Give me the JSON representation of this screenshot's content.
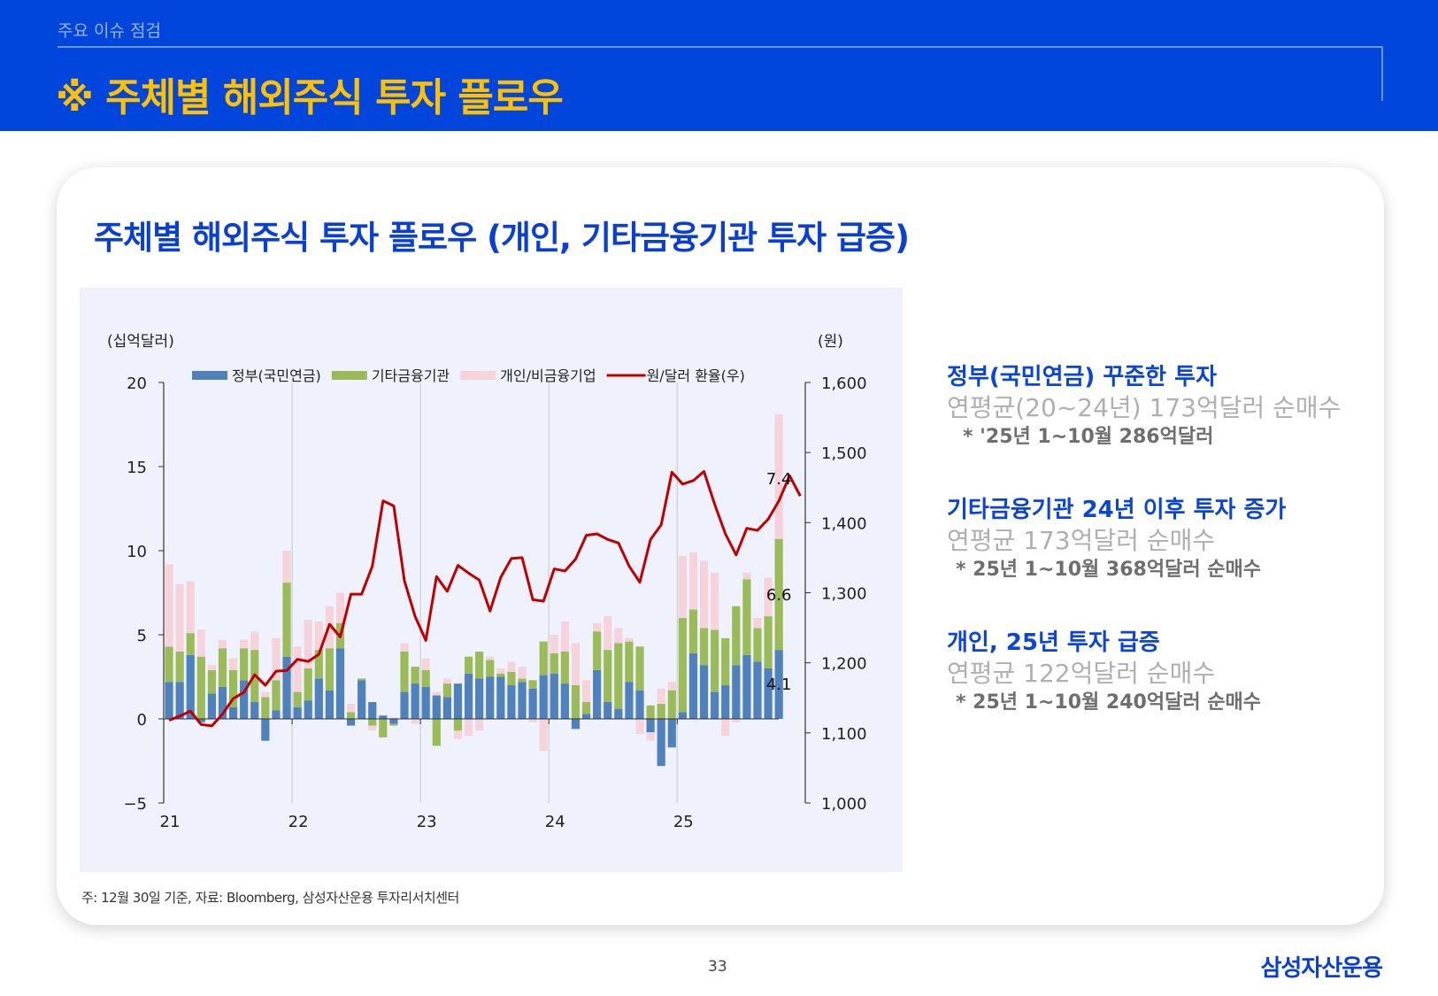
{
  "header": {
    "section": "주요 이슈 점검",
    "title": "※ 주체별 해외주식 투자 플로우"
  },
  "card": {
    "title": "주체별 해외주식 투자 플로우 (개인, 기타금융기관 투자 급증)",
    "footnote": "주: 12월 30일 기준, 자료: Bloomberg, 삼성자산운용 투자리서치센터"
  },
  "chart_data": {
    "type": "bar",
    "stacked": true,
    "left_unit": "(십억달러)",
    "right_unit": "(원)",
    "ylim": [
      -5,
      20
    ],
    "y_ticks": [
      "20",
      "15",
      "10",
      "5",
      "0",
      "−5"
    ],
    "y_tick_values": [
      20,
      15,
      10,
      5,
      0,
      -5
    ],
    "y2lim": [
      1000,
      1600
    ],
    "y2_ticks": [
      "1,600",
      "1,500",
      "1,400",
      "1,300",
      "1,200",
      "1,100",
      "1,000"
    ],
    "y2_tick_values": [
      1600,
      1500,
      1400,
      1300,
      1200,
      1100,
      1000
    ],
    "x_ticks": [
      "21",
      "22",
      "23",
      "24",
      "25"
    ],
    "grid": "vertical lines at year boundaries",
    "legend_position": "top",
    "frequency": "monthly",
    "x_start": "2021-01",
    "series": [
      {
        "name": "정부(국민연금)",
        "color": "#4F81BD",
        "kind": "bar",
        "values": [
          2.2,
          2.2,
          3.8,
          -0.2,
          1.5,
          1.9,
          0.7,
          2.3,
          1.0,
          -1.3,
          0.5,
          3.7,
          0.7,
          1.1,
          2.4,
          1.7,
          4.2,
          -0.4,
          2.3,
          1.0,
          0.2,
          -0.3,
          1.6,
          2.1,
          1.9,
          1.4,
          1.3,
          2.1,
          2.7,
          2.4,
          2.5,
          2.5,
          2.0,
          2.2,
          1.8,
          2.6,
          2.7,
          2.1,
          -0.6,
          0.3,
          2.9,
          1.0,
          0.6,
          2.2,
          1.7,
          -0.8,
          -2.8,
          -1.7,
          0.4,
          3.9,
          3.2,
          1.6,
          2.0,
          3.2,
          3.8,
          3.4,
          3.0,
          4.1
        ]
      },
      {
        "name": "기타금융기관",
        "color": "#9BBB59",
        "kind": "bar",
        "values": [
          2.1,
          1.8,
          1.3,
          3.7,
          1.4,
          2.3,
          2.2,
          1.9,
          3.1,
          1.3,
          1.8,
          4.4,
          0.9,
          1.9,
          1.7,
          2.5,
          1.5,
          0.4,
          0.1,
          -0.4,
          -1.1,
          -0.1,
          2.4,
          1.0,
          1.0,
          -1.6,
          0.8,
          -0.7,
          1.0,
          1.6,
          1.0,
          0.2,
          0.8,
          0.2,
          0.5,
          2.0,
          1.2,
          1.9,
          2.0,
          0.7,
          2.3,
          3.1,
          3.9,
          2.4,
          2.6,
          0.8,
          0.9,
          1.7,
          5.6,
          2.6,
          2.2,
          3.7,
          2.8,
          3.5,
          4.5,
          2.0,
          3.1,
          6.6
        ]
      },
      {
        "name": "개인/비금융기업",
        "color": "#F6D3DA",
        "kind": "bar",
        "values": [
          4.9,
          4.0,
          3.1,
          1.6,
          0.3,
          0.5,
          0.7,
          0.5,
          1.1,
          0.3,
          2.5,
          1.9,
          2.7,
          2.9,
          1.7,
          2.5,
          1.8,
          0.5,
          0.0,
          -0.3,
          0.0,
          0.1,
          0.5,
          -0.3,
          0.7,
          0.2,
          0.3,
          -0.5,
          -1.0,
          -0.7,
          0.2,
          0.3,
          0.6,
          0.7,
          -0.2,
          -1.9,
          1.1,
          1.8,
          2.5,
          1.3,
          0.5,
          2.0,
          0.9,
          0.2,
          -0.9,
          -0.5,
          0.9,
          0.5,
          3.7,
          3.4,
          4.0,
          3.4,
          -1.0,
          -0.2,
          0.4,
          0.6,
          2.3,
          7.4
        ]
      },
      {
        "name": "원/달러 환율(우)",
        "color": "#C00000",
        "kind": "line",
        "axis": "right",
        "values": [
          1118,
          1124,
          1131,
          1112,
          1110,
          1127,
          1149,
          1158,
          1183,
          1168,
          1188,
          1189,
          1205,
          1202,
          1212,
          1255,
          1237,
          1298,
          1298,
          1338,
          1431,
          1424,
          1317,
          1266,
          1232,
          1323,
          1302,
          1339,
          1328,
          1318,
          1274,
          1322,
          1349,
          1350,
          1290,
          1288,
          1334,
          1331,
          1348,
          1382,
          1384,
          1376,
          1371,
          1338,
          1315,
          1376,
          1397,
          1472,
          1455,
          1460,
          1473,
          1426,
          1384,
          1354,
          1392,
          1389,
          1405,
          1431,
          1467,
          1438
        ]
      }
    ],
    "data_labels": [
      "7.4",
      "6.6",
      "4.1"
    ]
  },
  "sidebar": [
    {
      "heading": "정부(국민연금) 꾸준한 투자",
      "summary": "연평균(20~24년) 173억달러 순매수",
      "note": "* '25년 1~10월 286억달러"
    },
    {
      "heading": "기타금융기관 24년 이후 투자 증가",
      "summary": "연평균 173억달러 순매수",
      "note": "* 25년 1~10월 368억달러 순매수"
    },
    {
      "heading": "개인, 25년 투자 급증",
      "summary": "연평균 122억달러 순매수",
      "note": "* 25년 1~10월 240억달러 순매수"
    }
  ],
  "footer": {
    "page": "33",
    "logo": "삼성자산운용"
  }
}
